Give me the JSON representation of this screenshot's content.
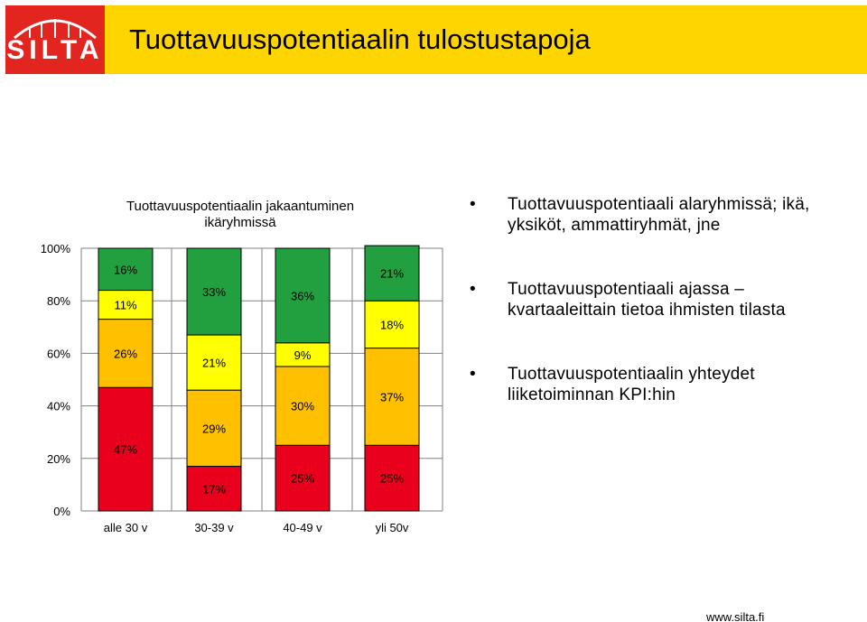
{
  "header": {
    "logo_text": "SILTA",
    "title": "Tuottavuuspotentiaalin tulostustapoja"
  },
  "bullets": [
    "Tuottavuuspotentiaali alaryhmissä; ikä, yksiköt, ammattiryhmät, jne",
    "Tuottavuuspotentiaali ajassa – kvartaaleittain tietoa ihmisten tilasta",
    "Tuottavuuspotentiaalin yhteydet liiketoiminnan KPI:hin"
  ],
  "footer": {
    "url": "www.silta.fi"
  },
  "colors": {
    "header_yellow": "#FFD500",
    "logo_red": "#E2251E"
  },
  "chart_data": {
    "type": "bar",
    "stacked": true,
    "title": "Tuottavuuspotentiaalin jakaantuminen ikäryhmissä",
    "title_lines": [
      "Tuottavuuspotentiaalin jakaantuminen",
      "ikäryhmissä"
    ],
    "categories": [
      "alle 30 v",
      "30-39 v",
      "40-49 v",
      "yli 50v"
    ],
    "y_ticks": [
      "0%",
      "20%",
      "40%",
      "60%",
      "80%",
      "100%"
    ],
    "ylim": [
      0,
      100
    ],
    "grid": true,
    "segment_order": "bottom-to-top",
    "segment_colors": [
      "#E8001C",
      "#FFC000",
      "#FFFF00",
      "#22A040"
    ],
    "series": [
      {
        "values": [
          47,
          17,
          25,
          25
        ],
        "labels": [
          "47%",
          "17%",
          "25%",
          "25%"
        ]
      },
      {
        "values": [
          26,
          29,
          30,
          37
        ],
        "labels": [
          "26%",
          "29%",
          "30%",
          "37%"
        ]
      },
      {
        "values": [
          11,
          21,
          9,
          18
        ],
        "labels": [
          "11%",
          "21%",
          "9%",
          "18%"
        ]
      },
      {
        "values": [
          16,
          33,
          36,
          21
        ],
        "labels": [
          "16%",
          "33%",
          "36%",
          "21%"
        ]
      }
    ]
  }
}
